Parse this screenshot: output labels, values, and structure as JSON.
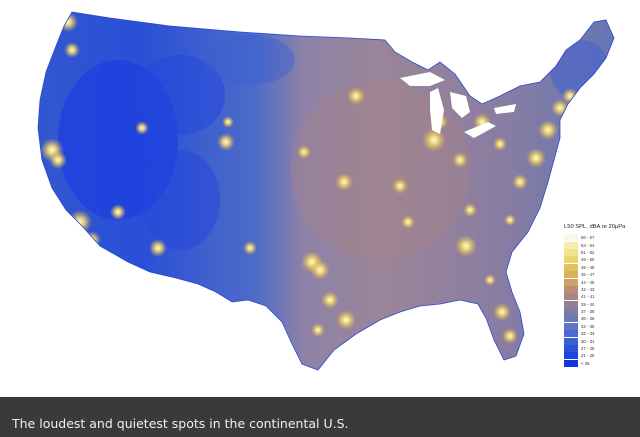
{
  "map": {
    "region": "continental U.S.",
    "legend": {
      "title": "L50 SPL, dBA re 20μPa",
      "entries": [
        {
          "label": "56 - 67",
          "color": "#fbf8e8"
        },
        {
          "label": "53 - 54",
          "color": "#f6ecb2"
        },
        {
          "label": "51 - 52",
          "color": "#f2e28f"
        },
        {
          "label": "49 - 50",
          "color": "#ecd56e"
        },
        {
          "label": "48 - 48",
          "color": "#e2c35a"
        },
        {
          "label": "46 - 47",
          "color": "#d9b35a"
        },
        {
          "label": "44 - 45",
          "color": "#cca265"
        },
        {
          "label": "42 - 43",
          "color": "#bc8f74"
        },
        {
          "label": "41 - 41",
          "color": "#a98583"
        },
        {
          "label": "39 - 40",
          "color": "#947f92"
        },
        {
          "label": "37 - 38",
          "color": "#7e7ba5"
        },
        {
          "label": "36 - 36",
          "color": "#6d7ab6"
        },
        {
          "label": "34 - 35",
          "color": "#5b74c4"
        },
        {
          "label": "32 - 33",
          "color": "#4a6bcd"
        },
        {
          "label": "30 - 31",
          "color": "#3b60d4"
        },
        {
          "label": "27 - 29",
          "color": "#2c52da"
        },
        {
          "label": "21 - 26",
          "color": "#1e43de"
        },
        {
          "label": "< 26",
          "color": "#1432e0"
        }
      ]
    }
  },
  "caption": "The loudest and quietest spots in the continental U.S."
}
